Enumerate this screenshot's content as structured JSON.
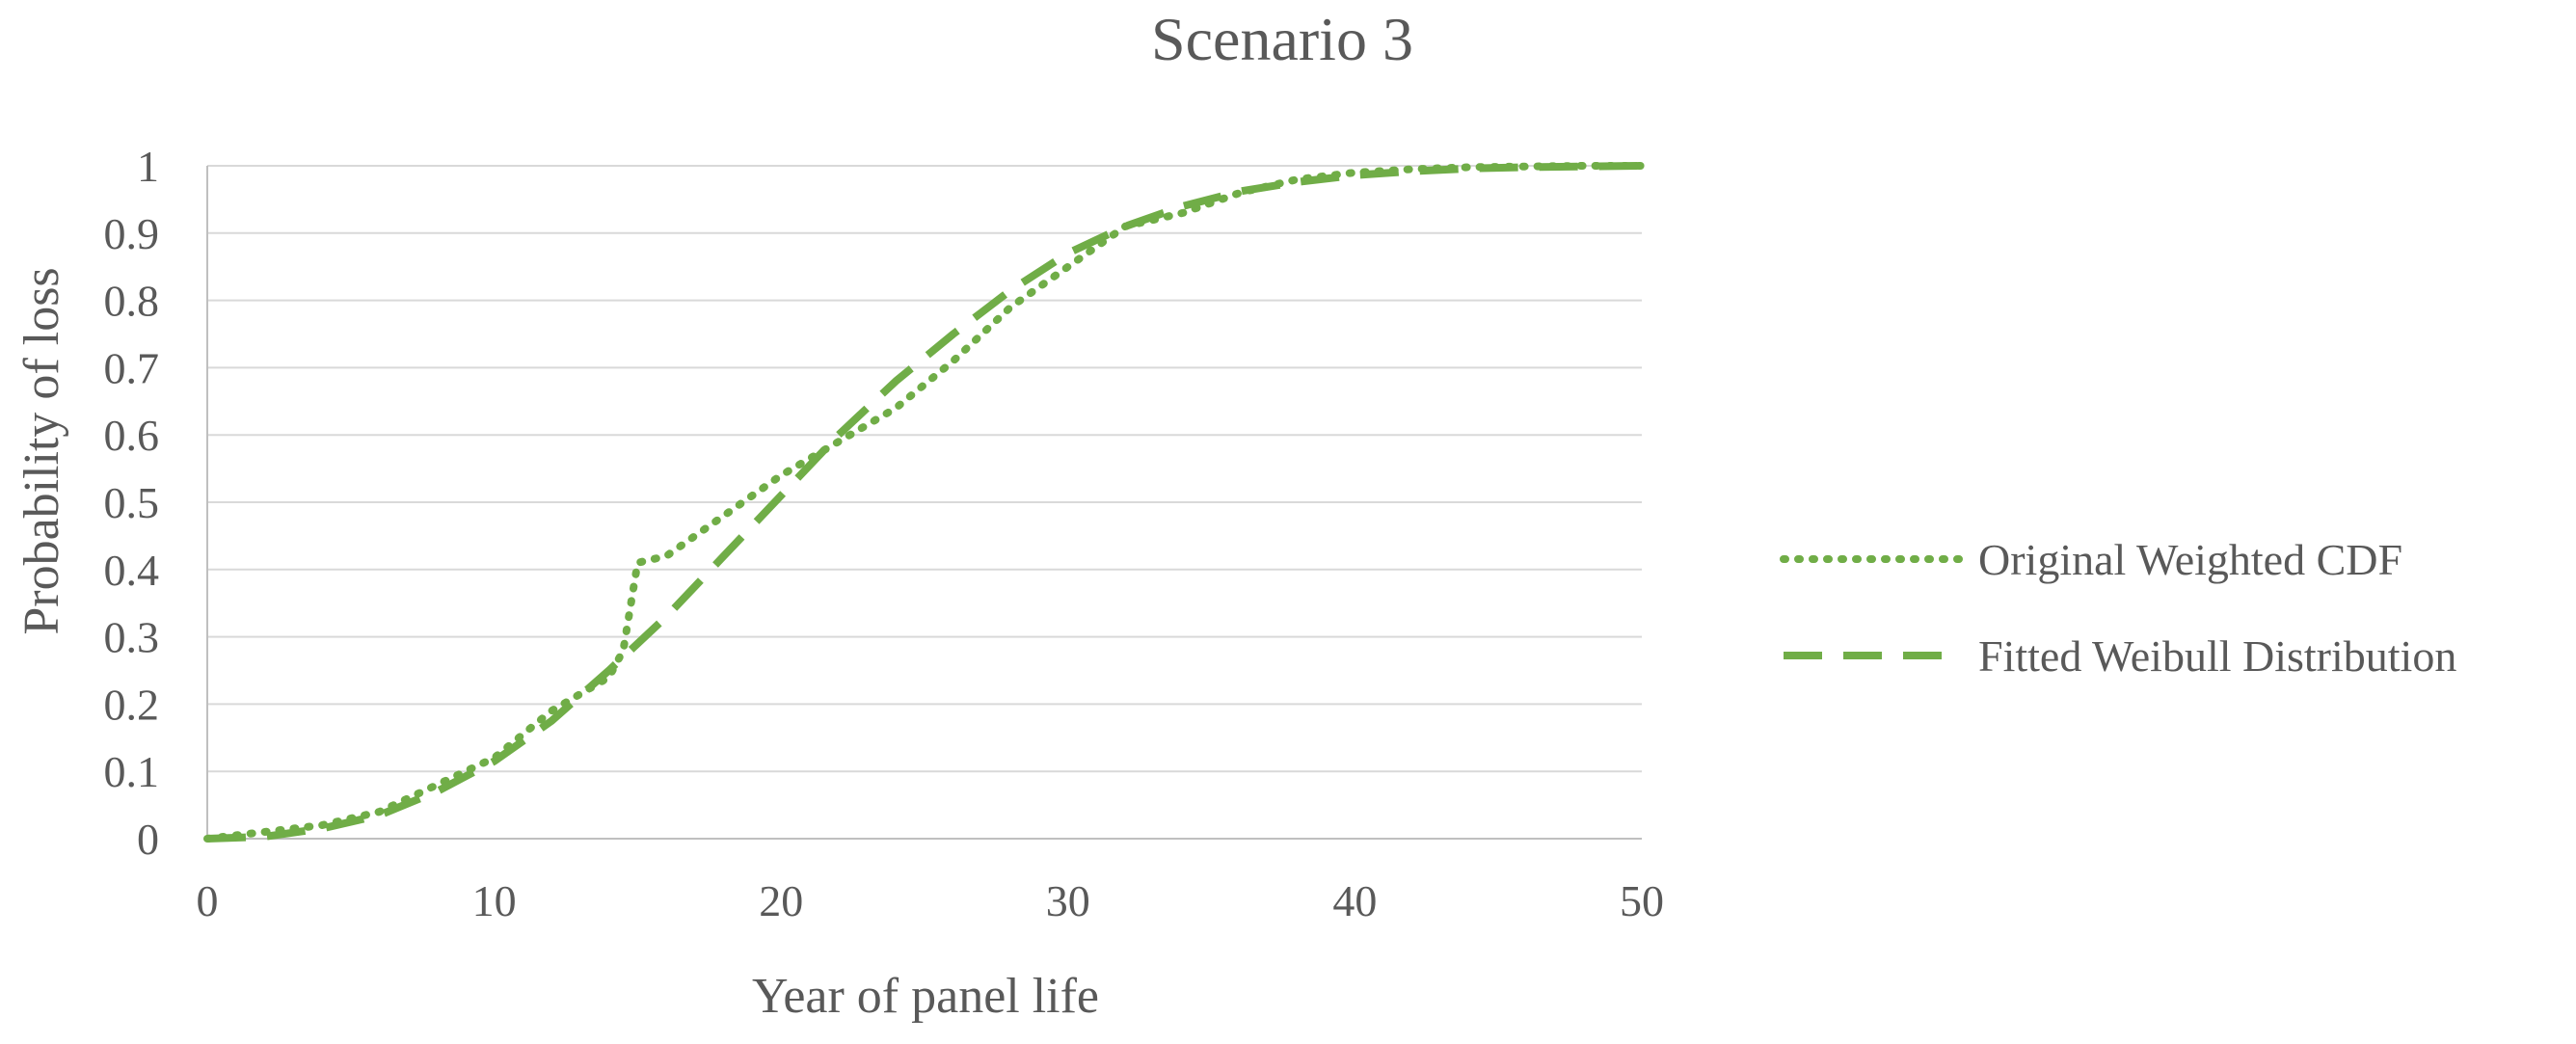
{
  "chart_data": {
    "type": "line",
    "title": "Scenario 3",
    "xlabel": "Year of panel life",
    "ylabel": "Probability of loss",
    "xlim": [
      0,
      50
    ],
    "ylim": [
      0,
      1
    ],
    "x_ticks": [
      0,
      10,
      20,
      30,
      40,
      50
    ],
    "y_ticks": [
      0,
      0.1,
      0.2,
      0.3,
      0.4,
      0.5,
      0.6,
      0.7,
      0.8,
      0.9,
      1
    ],
    "y_tick_labels": [
      "0",
      "0.1",
      "0.2",
      "0.3",
      "0.4",
      "0.5",
      "0.6",
      "0.7",
      "0.8",
      "0.9",
      "1"
    ],
    "x_tick_labels": [
      "0",
      "10",
      "20",
      "30",
      "40",
      "50"
    ],
    "grid": true,
    "legend_position": "right",
    "series": [
      {
        "name": "Original Weighted CDF",
        "style": "dotted",
        "color": "#70ad47",
        "x": [
          0,
          2,
          4,
          6,
          8,
          10,
          12,
          14,
          14.5,
          15,
          16,
          18,
          20,
          22,
          24,
          26,
          28,
          30,
          32,
          34,
          36,
          38,
          40,
          42,
          44,
          46,
          48,
          50
        ],
        "y": [
          0,
          0.01,
          0.02,
          0.04,
          0.08,
          0.12,
          0.19,
          0.24,
          0.28,
          0.41,
          0.42,
          0.48,
          0.54,
          0.59,
          0.64,
          0.71,
          0.79,
          0.85,
          0.91,
          0.93,
          0.96,
          0.98,
          0.99,
          0.995,
          0.998,
          0.999,
          1,
          1
        ]
      },
      {
        "name": "Fitted Weibull Distribution",
        "style": "dashed",
        "color": "#70ad47",
        "x": [
          0,
          2,
          4,
          6,
          8,
          10,
          12,
          14,
          16,
          18,
          20,
          22,
          24,
          26,
          28,
          30,
          32,
          34,
          36,
          38,
          40,
          42,
          44,
          46,
          48,
          50
        ],
        "y": [
          0,
          0.003,
          0.015,
          0.035,
          0.07,
          0.115,
          0.175,
          0.25,
          0.33,
          0.42,
          0.51,
          0.6,
          0.68,
          0.75,
          0.815,
          0.87,
          0.91,
          0.94,
          0.962,
          0.976,
          0.986,
          0.992,
          0.996,
          0.998,
          0.999,
          1
        ]
      }
    ]
  }
}
